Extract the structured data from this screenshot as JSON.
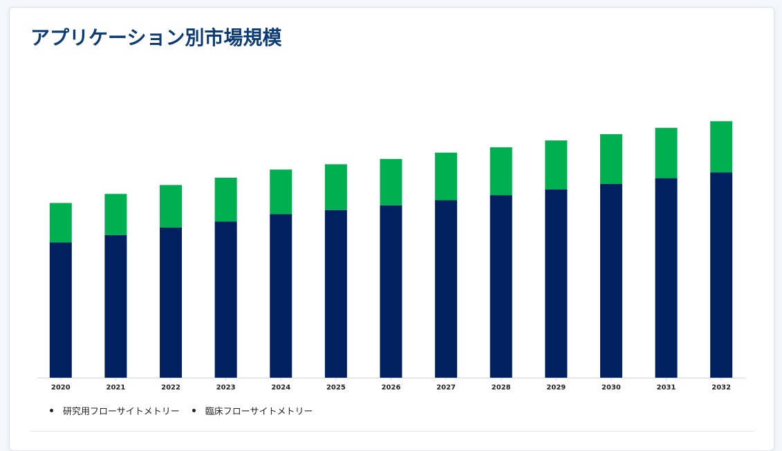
{
  "title": "アプリケーション別市場規模",
  "colors": {
    "research": "#002060",
    "clinical": "#00b050",
    "title": "#0c3c78"
  },
  "chart_data": {
    "type": "bar",
    "stacked": true,
    "categories": [
      "2020",
      "2021",
      "2022",
      "2023",
      "2024",
      "2025",
      "2026",
      "2027",
      "2028",
      "2029",
      "2030",
      "2031",
      "2032"
    ],
    "series": [
      {
        "name": "研究用フローサイトメトリー",
        "color": "#002060",
        "values": [
          5.34,
          5.63,
          5.93,
          6.17,
          6.46,
          6.62,
          6.81,
          7.01,
          7.21,
          7.44,
          7.65,
          7.88,
          8.11
        ]
      },
      {
        "name": "臨床フローサイトメトリー",
        "color": "#00b050",
        "values": [
          1.56,
          1.63,
          1.68,
          1.73,
          1.76,
          1.81,
          1.83,
          1.88,
          1.89,
          1.93,
          1.97,
          1.99,
          2.02
        ]
      }
    ],
    "legend_position": "bottom-left",
    "grid": false
  }
}
